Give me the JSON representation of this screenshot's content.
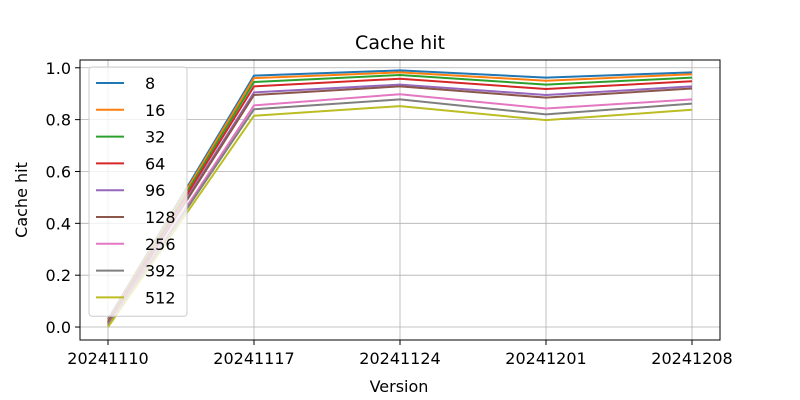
{
  "chart_data": {
    "type": "line",
    "title": "Cache hit",
    "xlabel": "Version",
    "ylabel": "Cache hit",
    "x": [
      "20241110",
      "20241117",
      "20241124",
      "20241201",
      "20241208"
    ],
    "ylim": [
      -0.05,
      1.03
    ],
    "yticks": [
      0.0,
      0.2,
      0.4,
      0.6,
      0.8,
      1.0
    ],
    "grid": true,
    "legend_position": "upper-left",
    "series": [
      {
        "name": "8",
        "color": "#1f77b4",
        "values": [
          0.03,
          0.97,
          0.99,
          0.962,
          0.982
        ]
      },
      {
        "name": "16",
        "color": "#ff7f0e",
        "values": [
          0.025,
          0.96,
          0.982,
          0.95,
          0.975
        ]
      },
      {
        "name": "32",
        "color": "#2ca02c",
        "values": [
          0.02,
          0.945,
          0.972,
          0.935,
          0.962
        ]
      },
      {
        "name": "64",
        "color": "#d62728",
        "values": [
          0.018,
          0.928,
          0.958,
          0.918,
          0.948
        ]
      },
      {
        "name": "96",
        "color": "#9467bd",
        "values": [
          0.015,
          0.905,
          0.935,
          0.895,
          0.928
        ]
      },
      {
        "name": "128",
        "color": "#8c564b",
        "values": [
          0.012,
          0.895,
          0.928,
          0.885,
          0.92
        ]
      },
      {
        "name": "256",
        "color": "#e377c2",
        "values": [
          0.008,
          0.855,
          0.898,
          0.843,
          0.878
        ]
      },
      {
        "name": "392",
        "color": "#7f7f7f",
        "values": [
          0.005,
          0.84,
          0.878,
          0.82,
          0.862
        ]
      },
      {
        "name": "512",
        "color": "#bcbd22",
        "values": [
          0.0,
          0.815,
          0.852,
          0.798,
          0.838
        ]
      }
    ]
  }
}
